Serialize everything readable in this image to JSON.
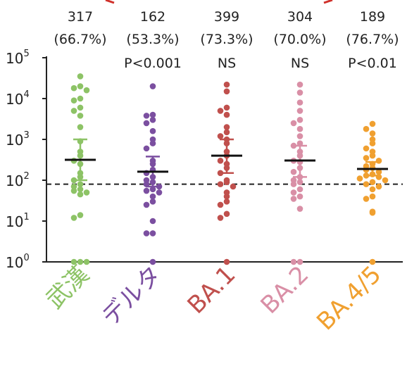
{
  "chart_data": {
    "type": "scatter",
    "yscale": "log",
    "ylim": [
      1,
      100000
    ],
    "ytick_labels": [
      {
        "base": "10",
        "exp": "0"
      },
      {
        "base": "10",
        "exp": "1"
      },
      {
        "base": "10",
        "exp": "2"
      },
      {
        "base": "10",
        "exp": "3"
      },
      {
        "base": "10",
        "exp": "4"
      },
      {
        "base": "10",
        "exp": "5"
      }
    ],
    "threshold": 80,
    "categories": [
      {
        "name": "武漢",
        "color": "#8dc366",
        "geomean_label": "317",
        "percent_label": "(66.7%)",
        "pvalue_label": "",
        "geomean": 317,
        "ci_low": 100,
        "ci_high": 1000,
        "points": [
          35000,
          20000,
          18000,
          16000,
          10000,
          9000,
          6000,
          5000,
          3800,
          2000,
          900,
          500,
          400,
          300,
          250,
          150,
          120,
          100,
          80,
          70,
          60,
          55,
          50,
          45,
          14,
          12,
          1,
          1,
          1
        ]
      },
      {
        "name": "デルタ",
        "color": "#7b4fa0",
        "geomean_label": "162",
        "percent_label": "(53.3%)",
        "pvalue_label": "P<0.001",
        "geomean": 162,
        "ci_low": 70,
        "ci_high": 380,
        "points": [
          20000,
          4000,
          3800,
          3000,
          2500,
          1600,
          1000,
          800,
          600,
          300,
          250,
          180,
          150,
          120,
          100,
          90,
          80,
          70,
          60,
          55,
          50,
          40,
          30,
          25,
          10,
          5,
          5,
          1
        ]
      },
      {
        "name": "BA.1",
        "color": "#c0504d",
        "geomean_label": "399",
        "percent_label": "(73.3%)",
        "pvalue_label": "NS",
        "geomean": 399,
        "ci_low": 150,
        "ci_high": 1000,
        "points": [
          22000,
          15000,
          6000,
          5000,
          4000,
          2000,
          1500,
          1200,
          1000,
          800,
          500,
          400,
          300,
          250,
          200,
          150,
          100,
          90,
          80,
          70,
          50,
          40,
          30,
          25,
          15,
          12,
          1
        ]
      },
      {
        "name": "BA.2",
        "color": "#d98fa6",
        "geomean_label": "304",
        "percent_label": "(70.0%)",
        "pvalue_label": "NS",
        "geomean": 304,
        "ci_low": 120,
        "ci_high": 700,
        "points": [
          22000,
          14000,
          8000,
          5000,
          3000,
          2500,
          1800,
          1200,
          800,
          700,
          500,
          400,
          300,
          280,
          200,
          160,
          120,
          100,
          90,
          80,
          60,
          50,
          40,
          35,
          20,
          1,
          1
        ]
      },
      {
        "name": "BA.4/5",
        "color": "#f0a030",
        "geomean_label": "189",
        "percent_label": "(76.7%)",
        "pvalue_label": "P<0.01",
        "geomean": 189,
        "ci_low": 130,
        "ci_high": 280,
        "points": [
          2400,
          1800,
          1400,
          1000,
          800,
          600,
          500,
          400,
          350,
          300,
          250,
          220,
          200,
          180,
          160,
          140,
          130,
          120,
          110,
          100,
          90,
          80,
          70,
          60,
          40,
          35,
          17,
          16,
          1
        ]
      }
    ]
  }
}
